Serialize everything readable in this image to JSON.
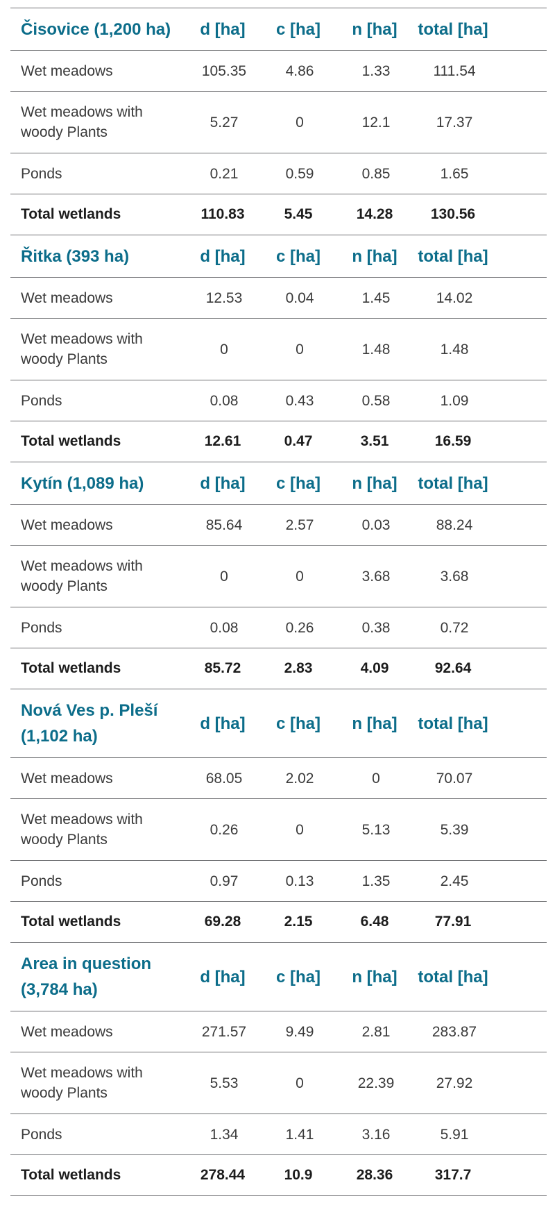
{
  "headers": {
    "d": "d [ha]",
    "c": "c [ha]",
    "n": "n [ha]",
    "total": "total [ha]"
  },
  "sections": [
    {
      "title": "Čisovice (1,200 ha)",
      "rows": [
        {
          "label": "Wet meadows",
          "d": "105.35",
          "c": "4.86",
          "n": "1.33",
          "total": "111.54"
        },
        {
          "label": "Wet meadows with woody Plants",
          "d": "5.27",
          "c": "0",
          "n": "12.1",
          "total": "17.37"
        },
        {
          "label": "Ponds",
          "d": "0.21",
          "c": "0.59",
          "n": "0.85",
          "total": "1.65"
        }
      ],
      "sum": {
        "label": "Total wetlands",
        "d": "110.83",
        "c": "5.45",
        "n": "14.28",
        "total": "130.56"
      }
    },
    {
      "title": "Řitka (393 ha)",
      "rows": [
        {
          "label": "Wet meadows",
          "d": "12.53",
          "c": "0.04",
          "n": "1.45",
          "total": "14.02"
        },
        {
          "label": "Wet meadows with woody Plants",
          "d": "0",
          "c": "0",
          "n": "1.48",
          "total": "1.48"
        },
        {
          "label": "Ponds",
          "d": "0.08",
          "c": "0.43",
          "n": "0.58",
          "total": "1.09"
        }
      ],
      "sum": {
        "label": "Total wetlands",
        "d": "12.61",
        "c": "0.47",
        "n": "3.51",
        "total": "16.59"
      }
    },
    {
      "title": "Kytín (1,089 ha)",
      "rows": [
        {
          "label": "Wet meadows",
          "d": "85.64",
          "c": "2.57",
          "n": "0.03",
          "total": "88.24"
        },
        {
          "label": "Wet meadows with woody Plants",
          "d": "0",
          "c": "0",
          "n": "3.68",
          "total": "3.68"
        },
        {
          "label": "Ponds",
          "d": "0.08",
          "c": "0.26",
          "n": "0.38",
          "total": "0.72"
        }
      ],
      "sum": {
        "label": "Total wetlands",
        "d": "85.72",
        "c": "2.83",
        "n": "4.09",
        "total": "92.64"
      }
    },
    {
      "title": "Nová Ves p. Pleší (1,102 ha)",
      "rows": [
        {
          "label": "Wet meadows",
          "d": "68.05",
          "c": "2.02",
          "n": "0",
          "total": "70.07"
        },
        {
          "label": "Wet meadows with woody Plants",
          "d": "0.26",
          "c": "0",
          "n": "5.13",
          "total": "5.39"
        },
        {
          "label": "Ponds",
          "d": "0.97",
          "c": "0.13",
          "n": "1.35",
          "total": "2.45"
        }
      ],
      "sum": {
        "label": "Total wetlands",
        "d": "69.28",
        "c": "2.15",
        "n": "6.48",
        "total": "77.91"
      }
    },
    {
      "title": "Area in question (3,784 ha)",
      "rows": [
        {
          "label": "Wet meadows",
          "d": "271.57",
          "c": "9.49",
          "n": "2.81",
          "total": "283.87"
        },
        {
          "label": "Wet meadows with woody Plants",
          "d": "5.53",
          "c": "0",
          "n": "22.39",
          "total": "27.92"
        },
        {
          "label": "Ponds",
          "d": "1.34",
          "c": "1.41",
          "n": "3.16",
          "total": "5.91"
        }
      ],
      "sum": {
        "label": "Total wetlands",
        "d": "278.44",
        "c": "10.9",
        "n": "28.36",
        "total": "317.7"
      }
    }
  ],
  "colors": {
    "header_text": "#0c6d8a",
    "body_text": "#3a3a3a",
    "rule": "#6d6e71"
  }
}
